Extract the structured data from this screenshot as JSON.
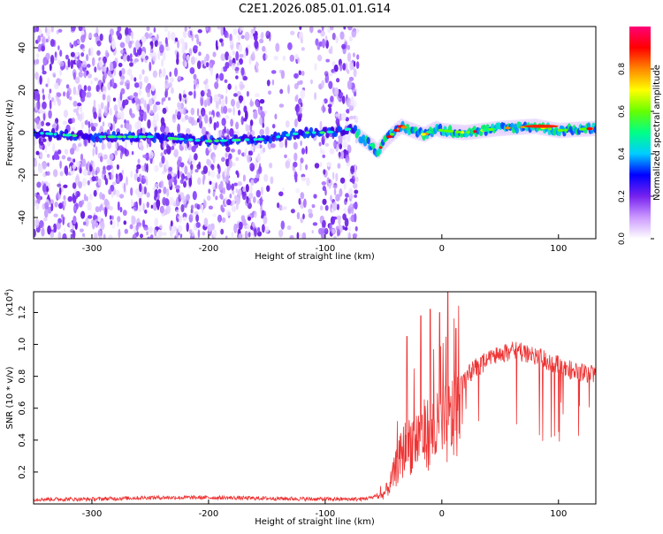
{
  "title": "C2E1.2026.085.01.01.G14",
  "chart_data": [
    {
      "type": "heatmap",
      "title": "",
      "xlabel": "Height of straight line (km)",
      "ylabel": "Frequency (Hz)",
      "xlim": [
        -350,
        132
      ],
      "ylim": [
        -50,
        50
      ],
      "x_ticks": [
        -300,
        -200,
        -100,
        0,
        100
      ],
      "y_ticks": [
        -40,
        -20,
        0,
        20,
        40
      ],
      "colorbar": {
        "label": "Normalized spectral amplitude",
        "range": [
          0,
          1
        ],
        "ticks": [
          "0.0",
          "0.2",
          "0.4",
          "0.6",
          "0.8"
        ],
        "colors": [
          "#ffffff",
          "#cc99ff",
          "#7722ee",
          "#0000ff",
          "#00ccff",
          "#00ff88",
          "#66ff00",
          "#ffff00",
          "#ff8800",
          "#ff0000",
          "#ff0077"
        ]
      },
      "description_points": {
        "center_line_frequency_hz": [
          [
            -350,
            0
          ],
          [
            -300,
            -2
          ],
          [
            -250,
            -2
          ],
          [
            -200,
            -4
          ],
          [
            -150,
            -3
          ],
          [
            -120,
            0
          ],
          [
            -100,
            0
          ],
          [
            -75,
            2
          ],
          [
            -70,
            -2
          ],
          [
            -60,
            -6
          ],
          [
            -55,
            -9
          ],
          [
            -50,
            -5
          ],
          [
            -45,
            -2
          ],
          [
            -35,
            3
          ],
          [
            -25,
            1
          ],
          [
            -15,
            -1
          ],
          [
            -5,
            2
          ],
          [
            0,
            1
          ],
          [
            20,
            0
          ],
          [
            50,
            2
          ],
          [
            80,
            3
          ],
          [
            100,
            1
          ],
          [
            132,
            2
          ]
        ],
        "noise_region_end_km": -72
      }
    },
    {
      "type": "line",
      "title": "",
      "xlabel": "Height of straight line (km)",
      "ylabel": "SNR (10 * v/v)",
      "y_multiplier_label": "(x10",
      "y_multiplier_exp": "4",
      "y_multiplier_close": ")",
      "xlim": [
        -350,
        132
      ],
      "ylim": [
        0,
        1.33
      ],
      "x_ticks": [
        -300,
        -200,
        -100,
        0,
        100
      ],
      "y_ticks": [
        "0.2",
        "0.4",
        "0.6",
        "0.8",
        "1.0",
        "1.2"
      ],
      "series": [
        {
          "color": "#ee3333",
          "envelope": [
            [
              -350,
              0.03
            ],
            [
              -300,
              0.03
            ],
            [
              -250,
              0.04
            ],
            [
              -200,
              0.04
            ],
            [
              -150,
              0.035
            ],
            [
              -100,
              0.03
            ],
            [
              -70,
              0.03
            ],
            [
              -60,
              0.04
            ],
            [
              -50,
              0.08
            ],
            [
              -45,
              0.15
            ],
            [
              -40,
              0.28
            ],
            [
              -35,
              0.4
            ],
            [
              -30,
              0.5
            ],
            [
              -20,
              0.55
            ],
            [
              -10,
              0.6
            ],
            [
              0,
              0.62
            ],
            [
              10,
              0.72
            ],
            [
              20,
              0.85
            ],
            [
              30,
              0.92
            ],
            [
              40,
              0.96
            ],
            [
              50,
              1.0
            ],
            [
              60,
              1.02
            ],
            [
              70,
              1.01
            ],
            [
              80,
              0.99
            ],
            [
              90,
              0.96
            ],
            [
              100,
              0.93
            ],
            [
              110,
              0.9
            ],
            [
              120,
              0.88
            ],
            [
              132,
              0.87
            ]
          ],
          "spikes": [
            [
              -30,
              1.05
            ],
            [
              -18,
              1.18
            ],
            [
              -10,
              1.22
            ],
            [
              -2,
              1.2
            ],
            [
              5,
              1.33
            ],
            [
              12,
              1.1
            ]
          ]
        }
      ]
    }
  ]
}
